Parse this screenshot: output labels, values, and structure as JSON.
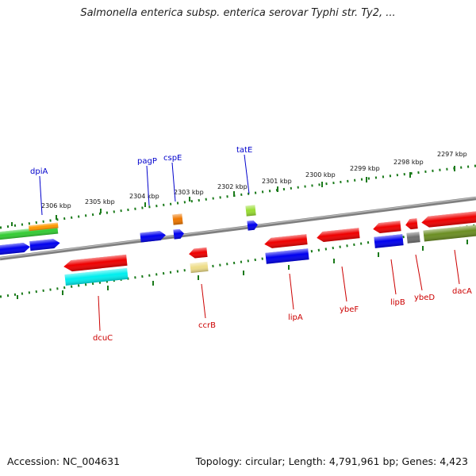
{
  "title": "Salmonella enterica subsp. enterica serovar Typhi str. Ty2, ...",
  "footer": {
    "accession": "Accession: NC_004631",
    "topology": "Topology: circular; Length: 4,791,961 bp; Genes: 4,423"
  },
  "colors": {
    "backbone": "#808080",
    "tick": "#1a7a1a",
    "label_forward": "#0000cc",
    "label_reverse": "#cc0000"
  },
  "scale_labels": [
    "2306 kbp",
    "2305 kbp",
    "2304 kbp",
    "2303 kbp",
    "2302 kbp",
    "2301 kbp",
    "2300 kbp",
    "2299 kbp",
    "2298 kbp",
    "2297 kbp"
  ],
  "gene_labels": {
    "forward": [
      "dpiA",
      "pagP",
      "cspE",
      "tatE"
    ],
    "reverse": [
      "dcuC",
      "ccrB",
      "lipA",
      "ybeF",
      "lipB",
      "ybeD",
      "dacA"
    ]
  }
}
